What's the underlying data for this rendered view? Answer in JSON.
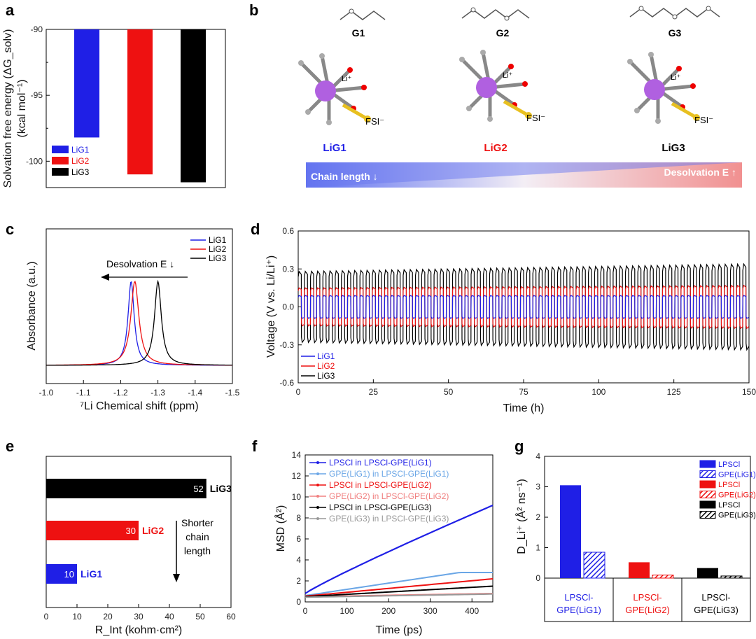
{
  "panel_labels": {
    "a": "a",
    "b": "b",
    "c": "c",
    "d": "d",
    "e": "e",
    "f": "f",
    "g": "g"
  },
  "colors": {
    "lig1": "#1f1fe6",
    "lig2": "#ee1111",
    "lig3": "#000000",
    "lightblue": "#6aa6e6",
    "pink": "#f08080",
    "gray": "#999999"
  },
  "chart_data": [
    {
      "id": "a",
      "type": "bar",
      "ylabel_main": "Solvation free energy (ΔG_solv)",
      "ylabel_unit": "(kcal mol⁻¹)",
      "ylim": [
        -90,
        -102
      ],
      "yticks": [
        -90,
        -95,
        -100
      ],
      "series": [
        {
          "name": "LiG1",
          "value": -98.2
        },
        {
          "name": "LiG2",
          "value": -101.0
        },
        {
          "name": "LiG3",
          "value": -101.6
        }
      ]
    },
    {
      "id": "c",
      "type": "line",
      "title": "",
      "xlabel": "⁷Li Chemical shift (ppm)",
      "ylabel": "Absorbance (a.u.)",
      "xlim": [
        -1.0,
        -1.5
      ],
      "xticks": [
        -1.0,
        -1.1,
        -1.2,
        -1.3,
        -1.4,
        -1.5
      ],
      "annotation": "Desolvation E ↓",
      "series": [
        {
          "name": "LiG1",
          "center": -1.228,
          "width": 0.01
        },
        {
          "name": "LiG2",
          "center": -1.238,
          "width": 0.013
        },
        {
          "name": "LiG3",
          "center": -1.3,
          "width": 0.011
        }
      ]
    },
    {
      "id": "d",
      "type": "line",
      "xlabel": "Time (h)",
      "ylabel": "Voltage (V vs. Li/Li⁺)",
      "xlim": [
        0,
        150
      ],
      "ylim": [
        -0.6,
        0.6
      ],
      "xticks": [
        0,
        25,
        50,
        75,
        100,
        125,
        150
      ],
      "yticks": [
        0.6,
        0.3,
        0.0,
        -0.3,
        -0.6
      ],
      "cycles": 73,
      "series": [
        {
          "name": "LiG1",
          "amp_start": 0.09,
          "amp_end": 0.09
        },
        {
          "name": "LiG2",
          "amp_start": 0.15,
          "amp_end": 0.17
        },
        {
          "name": "LiG3",
          "amp_start": 0.28,
          "amp_end": 0.34
        }
      ]
    },
    {
      "id": "e",
      "type": "bar",
      "xlabel": "R_Int (kohm·cm²)",
      "xlim": [
        0,
        60
      ],
      "xticks": [
        0,
        10,
        20,
        30,
        40,
        50,
        60
      ],
      "categories": [
        "LiG3",
        "LiG2",
        "LiG1"
      ],
      "values": [
        52,
        30,
        10
      ],
      "annotation": [
        "Shorter",
        "chain",
        "length"
      ]
    },
    {
      "id": "f",
      "type": "line",
      "xlabel": "Time (ps)",
      "ylabel": "MSD (Å²)",
      "xlim": [
        0,
        450
      ],
      "ylim": [
        0,
        14
      ],
      "xticks": [
        0,
        100,
        200,
        300,
        400
      ],
      "yticks": [
        0,
        2,
        4,
        6,
        8,
        10,
        12,
        14
      ],
      "series": [
        {
          "name": "LPSCl in LPSCl-GPE(LiG1)",
          "end": 9.2
        },
        {
          "name": "GPE(LiG1) in LPSCl-GPE(LiG1)",
          "end": 2.8
        },
        {
          "name": "LPSCl in LPSCl-GPE(LiG2)",
          "end": 2.2
        },
        {
          "name": "GPE(LiG2) in LPSCl-GPE(LiG2)",
          "end": 0.8
        },
        {
          "name": "LPSCl in LPSCl-GPE(LiG3)",
          "end": 1.5
        },
        {
          "name": "GPE(LiG3) in LPSCl-GPE(LiG3)",
          "end": 0.75
        }
      ]
    },
    {
      "id": "g",
      "type": "bar",
      "ylabel": "D_Li⁺ (Å² ns⁻¹)",
      "ylim": [
        0,
        4
      ],
      "yticks": [
        0,
        1,
        2,
        3,
        4
      ],
      "groups": [
        "LPSCl-\nGPE(LiG1)",
        "LPSCl-\nGPE(LiG2)",
        "LPSCl-\nGPE(LiG3)"
      ],
      "series": [
        {
          "name": "LPSCl",
          "values": [
            3.05,
            0.52,
            0.33
          ]
        },
        {
          "name": "GPE",
          "values": [
            0.85,
            0.1,
            0.07
          ]
        }
      ],
      "legend": [
        "LPSCl",
        "GPE(LiG1)",
        "LPSCl",
        "GPE(LiG2)",
        "LPSCl",
        "GPE(LiG3)"
      ]
    }
  ],
  "panel_b": {
    "glymes": [
      "G1",
      "G2",
      "G3"
    ],
    "complexes": [
      "LiG1",
      "LiG2",
      "LiG3"
    ],
    "li_label": "Li⁺",
    "fsi_label": "FSI⁻",
    "gradient_left": "Chain length ↓",
    "gradient_right": "Desolvation E ↑"
  }
}
